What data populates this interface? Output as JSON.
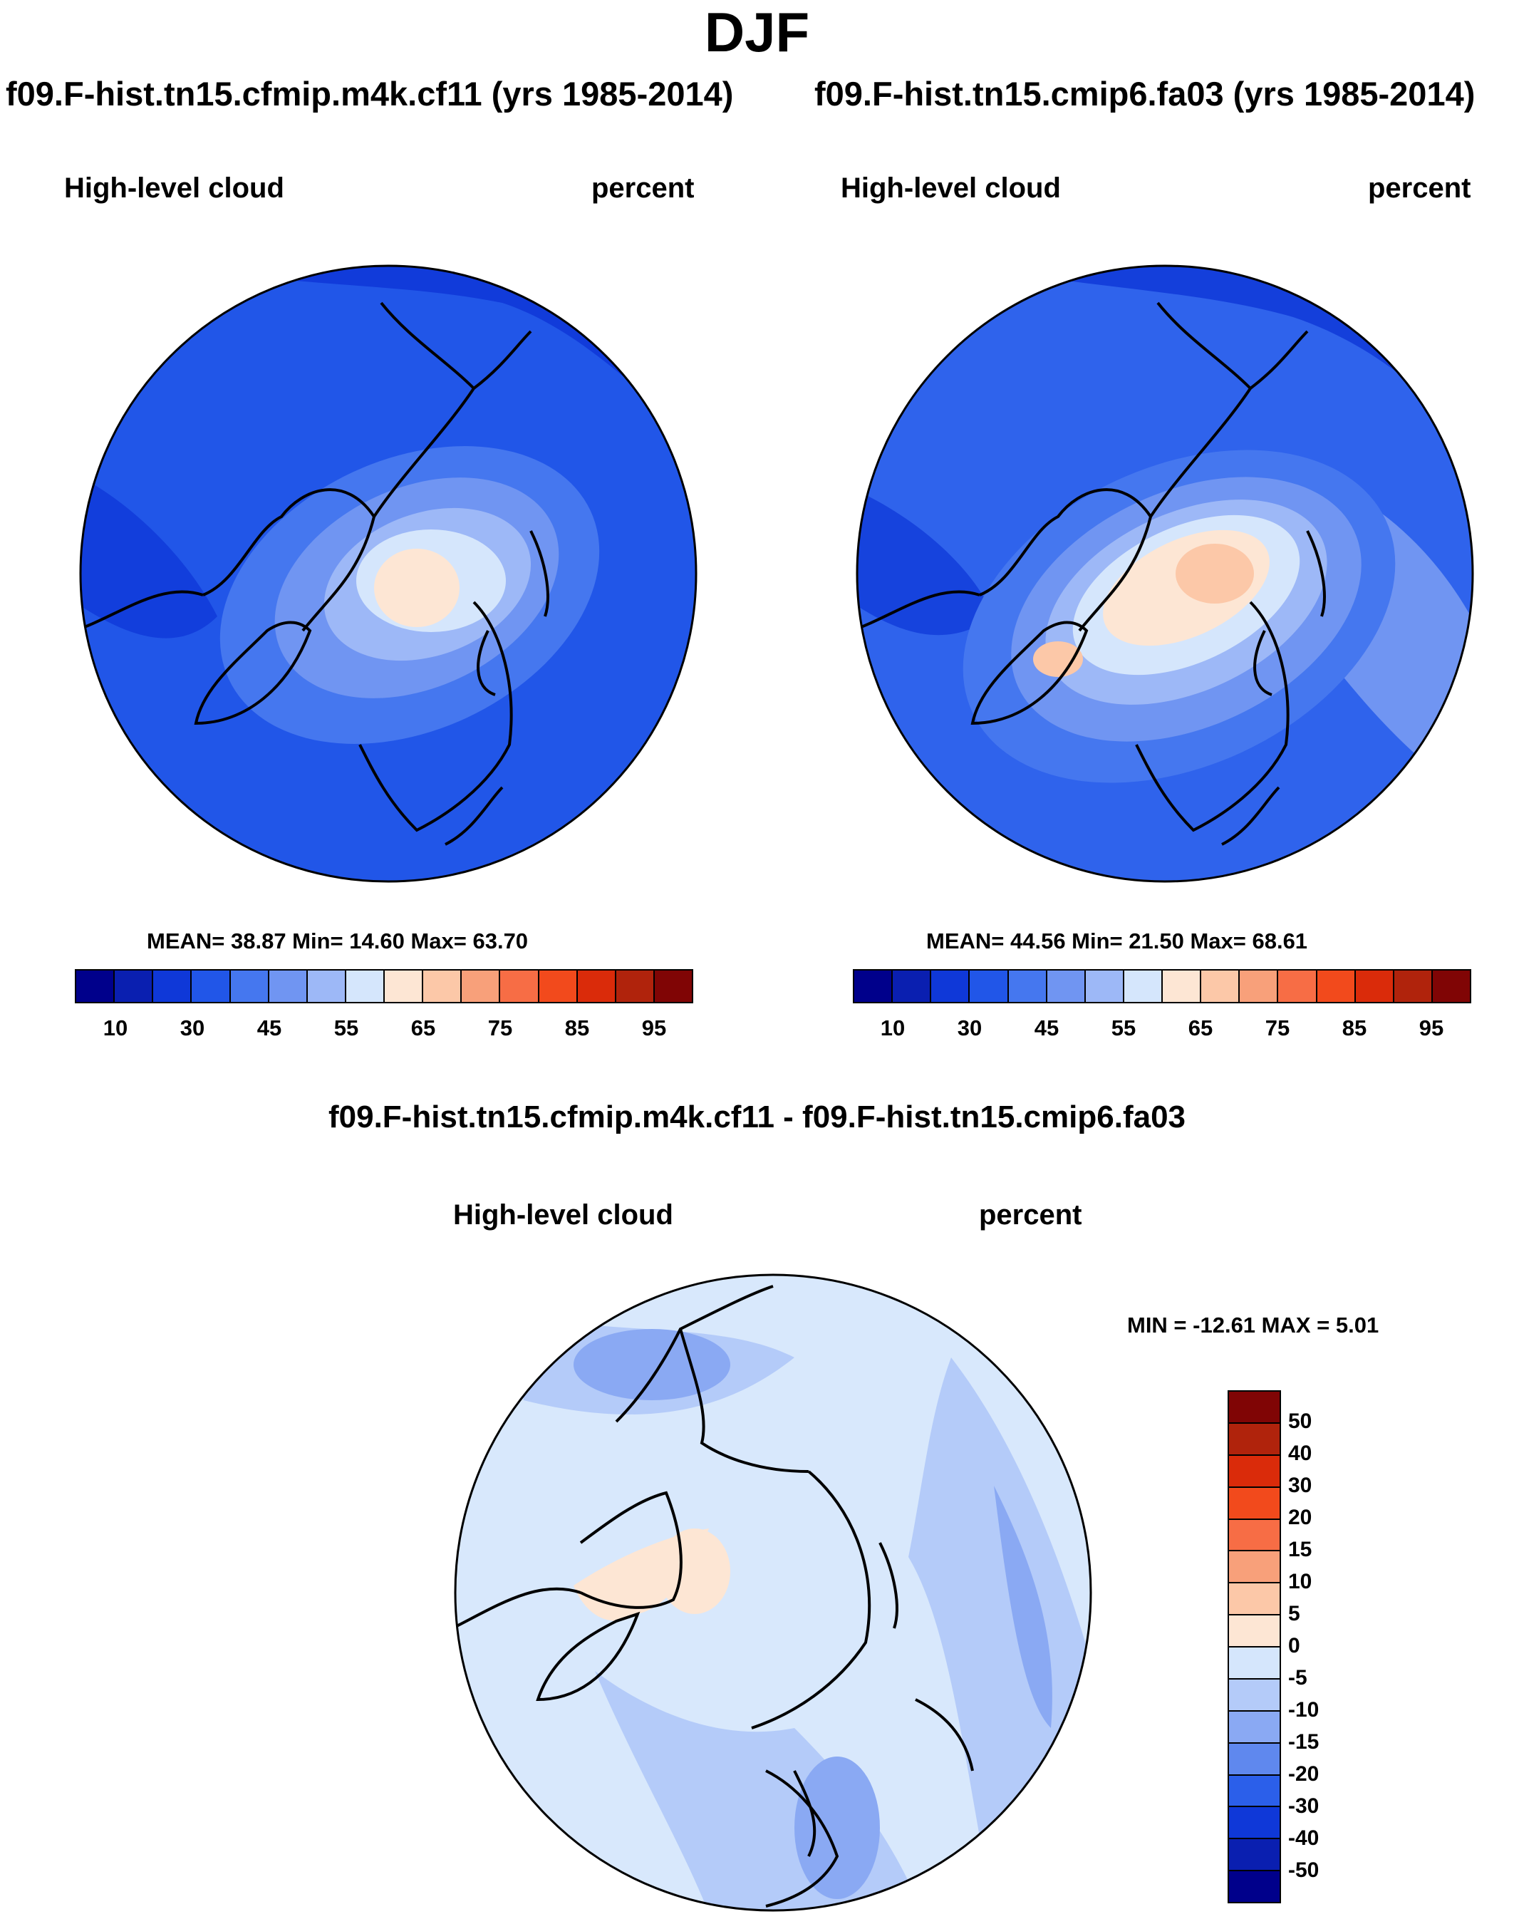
{
  "figure": {
    "title": "DJF",
    "diff_title": "f09.F-hist.tn15.cfmip.m4k.cf11 - f09.F-hist.tn15.cmip6.fa03"
  },
  "panels": [
    {
      "title": "f09.F-hist.tn15.cfmip.m4k.cf11 (yrs 1985-2014)",
      "variable": "High-level cloud",
      "units": "percent",
      "stats": "MEAN=  38.87  Min=  14.60  Max=  63.70",
      "background_color": "#2156e8"
    },
    {
      "title": "f09.F-hist.tn15.cmip6.fa03 (yrs 1985-2014)",
      "variable": "High-level cloud",
      "units": "percent",
      "stats": "MEAN=  44.56  Min=  21.50  Max=  68.61",
      "background_color": "#2f63ec"
    },
    {
      "title": "",
      "variable": "High-level cloud",
      "units": "percent",
      "stats": "MIN = -12.61 MAX =   5.01",
      "background_color": "#d8e8fc"
    }
  ],
  "abs_colorbar": {
    "colors": [
      "#00008b",
      "#0a1fb0",
      "#0f38d8",
      "#2156e8",
      "#4577ef",
      "#7095f2",
      "#9db8f7",
      "#d5e6fc",
      "#fde6d4",
      "#fcc8a8",
      "#f8a07a",
      "#f76d45",
      "#f24a1c",
      "#da2b0a",
      "#b0230c",
      "#800505"
    ],
    "tick_labels": [
      "10",
      "30",
      "45",
      "55",
      "65",
      "75",
      "85",
      "95"
    ]
  },
  "diff_colorbar": {
    "colors": [
      "#800505",
      "#b0230c",
      "#da2b0a",
      "#f24a1c",
      "#f76d45",
      "#f8a07a",
      "#fcc8a8",
      "#fde6d4",
      "#d5e6fc",
      "#b4cbf9",
      "#8aa9f3",
      "#5f88ee",
      "#2b5fea",
      "#0f38d8",
      "#0a1fb0",
      "#00008b"
    ],
    "tick_labels": [
      "50",
      "40",
      "30",
      "20",
      "15",
      "10",
      "5",
      "0",
      "-5",
      "-10",
      "-15",
      "-20",
      "-30",
      "-40",
      "-50"
    ]
  }
}
